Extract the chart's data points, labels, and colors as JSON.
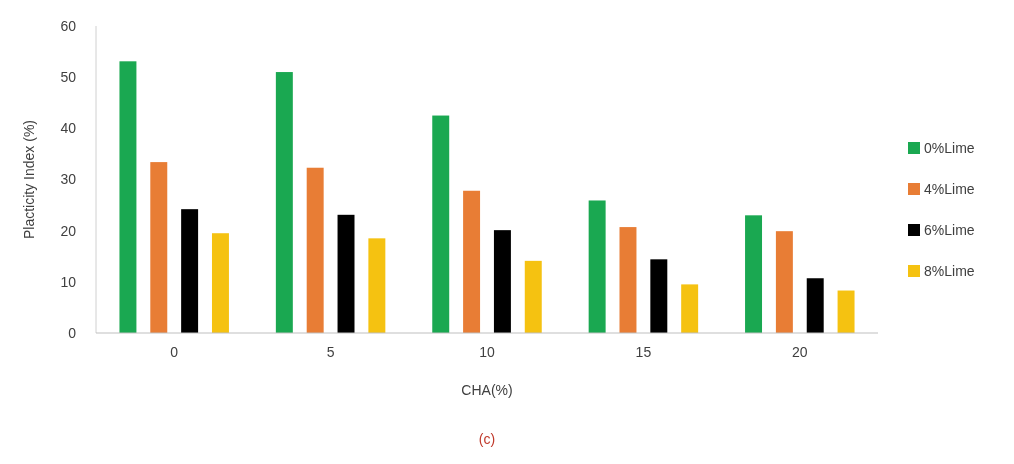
{
  "chart_data": {
    "type": "bar",
    "xlabel": "CHA(%)",
    "ylabel": "Placticity Index (%)",
    "annotations": [
      "(c)"
    ],
    "categories": [
      "0",
      "5",
      "10",
      "15",
      "20"
    ],
    "series": [
      {
        "name": "0%Lime",
        "color": "#1aa851",
        "values": [
          53.1,
          51,
          42.5,
          25.9,
          23
        ]
      },
      {
        "name": "4%Lime",
        "color": "#e87d35",
        "values": [
          33.4,
          32.3,
          27.8,
          20.7,
          19.9
        ]
      },
      {
        "name": "6%Lime",
        "color": "#000000",
        "values": [
          24.2,
          23.1,
          20.1,
          14.4,
          10.7
        ]
      },
      {
        "name": "8%Lime",
        "color": "#f5c211",
        "values": [
          19.5,
          18.5,
          14.1,
          9.5,
          8.3
        ]
      }
    ],
    "ylim": [
      0,
      60
    ],
    "yticks": [
      0,
      10,
      20,
      30,
      40,
      50,
      60
    ],
    "grid": false,
    "legend": "right"
  }
}
